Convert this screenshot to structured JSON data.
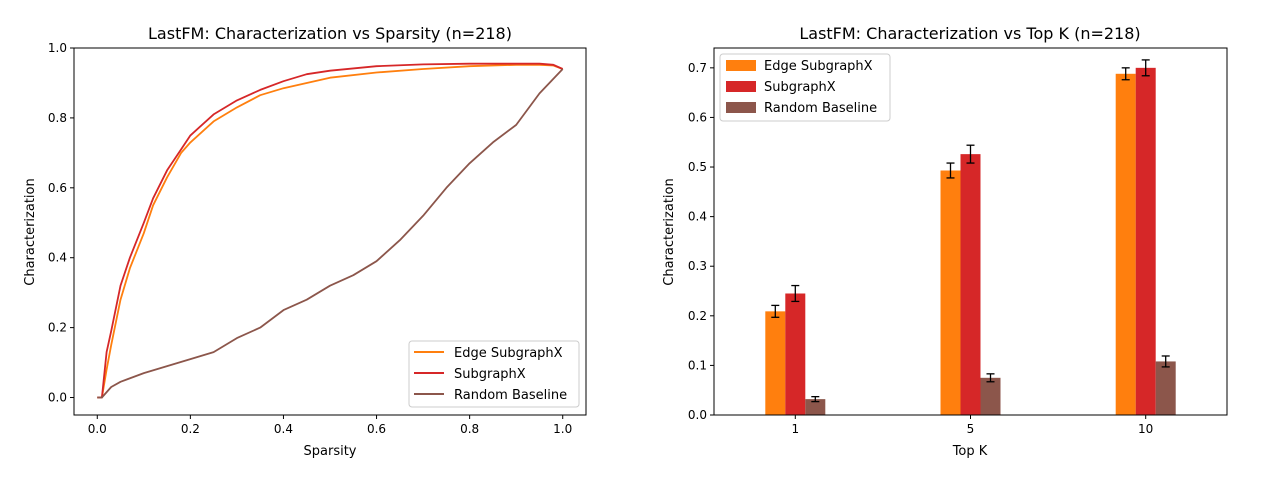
{
  "colors": {
    "edge_subgraphx": "#ff7f0e",
    "subgraphx": "#d62728",
    "random_baseline": "#8c564b"
  },
  "chart_data": [
    {
      "type": "line",
      "title": "LastFM: Characterization vs Sparsity (n=218)",
      "xlabel": "Sparsity",
      "ylabel": "Characterization",
      "xlim": [
        -0.05,
        1.05
      ],
      "ylim": [
        -0.05,
        1.0
      ],
      "xticks": [
        "0.0",
        "0.2",
        "0.4",
        "0.6",
        "0.8",
        "1.0"
      ],
      "yticks": [
        "0.0",
        "0.2",
        "0.4",
        "0.6",
        "0.8",
        "1.0"
      ],
      "grid": false,
      "legend_position": "lower-right",
      "series": [
        {
          "name": "Edge SubgraphX",
          "color": "#ff7f0e",
          "x": [
            0.0,
            0.01,
            0.02,
            0.03,
            0.05,
            0.07,
            0.1,
            0.12,
            0.15,
            0.18,
            0.2,
            0.25,
            0.3,
            0.35,
            0.4,
            0.45,
            0.5,
            0.6,
            0.7,
            0.8,
            0.9,
            0.95,
            0.98,
            1.0
          ],
          "y": [
            0.0,
            0.0,
            0.08,
            0.15,
            0.28,
            0.37,
            0.47,
            0.55,
            0.63,
            0.7,
            0.73,
            0.79,
            0.83,
            0.865,
            0.885,
            0.9,
            0.915,
            0.93,
            0.94,
            0.948,
            0.952,
            0.952,
            0.95,
            0.94
          ]
        },
        {
          "name": "SubgraphX",
          "color": "#d62728",
          "x": [
            0.0,
            0.01,
            0.02,
            0.03,
            0.05,
            0.07,
            0.1,
            0.12,
            0.15,
            0.18,
            0.2,
            0.25,
            0.3,
            0.35,
            0.4,
            0.45,
            0.5,
            0.6,
            0.7,
            0.8,
            0.9,
            0.95,
            0.98,
            1.0
          ],
          "y": [
            0.0,
            0.0,
            0.13,
            0.19,
            0.32,
            0.4,
            0.5,
            0.57,
            0.65,
            0.71,
            0.75,
            0.81,
            0.85,
            0.88,
            0.905,
            0.925,
            0.935,
            0.948,
            0.953,
            0.955,
            0.955,
            0.955,
            0.952,
            0.94
          ]
        },
        {
          "name": "Random Baseline",
          "color": "#8c564b",
          "x": [
            0.0,
            0.01,
            0.03,
            0.05,
            0.1,
            0.15,
            0.2,
            0.25,
            0.3,
            0.35,
            0.4,
            0.45,
            0.5,
            0.55,
            0.6,
            0.65,
            0.7,
            0.75,
            0.8,
            0.85,
            0.9,
            0.95,
            1.0
          ],
          "y": [
            0.0,
            0.0,
            0.03,
            0.045,
            0.07,
            0.09,
            0.11,
            0.13,
            0.17,
            0.2,
            0.25,
            0.28,
            0.32,
            0.35,
            0.39,
            0.45,
            0.52,
            0.6,
            0.67,
            0.73,
            0.78,
            0.87,
            0.94
          ]
        }
      ]
    },
    {
      "type": "bar",
      "title": "LastFM: Characterization vs Top K (n=218)",
      "xlabel": "Top K",
      "ylabel": "Characterization",
      "categories": [
        "1",
        "5",
        "10"
      ],
      "ylim": [
        0.0,
        0.74
      ],
      "yticks": [
        "0.0",
        "0.1",
        "0.2",
        "0.3",
        "0.4",
        "0.5",
        "0.6",
        "0.7"
      ],
      "grid": false,
      "legend_position": "upper-left",
      "series": [
        {
          "name": "Edge SubgraphX",
          "color": "#ff7f0e",
          "values": [
            0.209,
            0.493,
            0.688
          ],
          "errors": [
            0.012,
            0.015,
            0.012
          ]
        },
        {
          "name": "SubgraphX",
          "color": "#d62728",
          "values": [
            0.245,
            0.526,
            0.7
          ],
          "errors": [
            0.016,
            0.018,
            0.016
          ]
        },
        {
          "name": "Random Baseline",
          "color": "#8c564b",
          "values": [
            0.032,
            0.075,
            0.108
          ],
          "errors": [
            0.005,
            0.008,
            0.011
          ]
        }
      ]
    }
  ]
}
